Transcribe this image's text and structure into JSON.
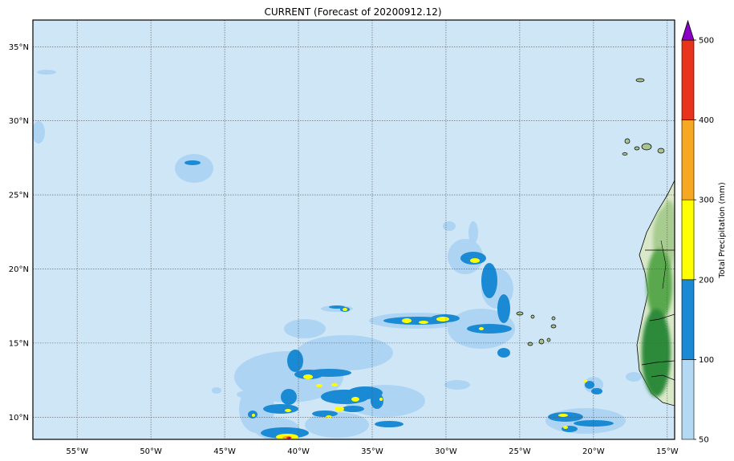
{
  "title": "CURRENT (Forecast of 20200912.12)",
  "map": {
    "lon_range": [
      -58,
      -14.5
    ],
    "lat_range": [
      8.5,
      36.8
    ],
    "ocean_color": "#cfe6f7",
    "grid_lon": [
      -55,
      -50,
      -45,
      -40,
      -35,
      -30,
      -25,
      -20,
      -15
    ],
    "grid_lat": [
      10,
      15,
      20,
      25,
      30,
      35
    ],
    "lon_labels": [
      "55°W",
      "50°W",
      "45°W",
      "40°W",
      "35°W",
      "30°W",
      "25°W",
      "20°W",
      "15°W"
    ],
    "lat_labels": [
      "10°N",
      "15°N",
      "20°N",
      "25°N",
      "30°N",
      "35°N"
    ],
    "land_colors": [
      "#d8e8c8",
      "#a8cc90",
      "#5aa84e",
      "#2e8a3a"
    ]
  },
  "colorbar": {
    "label": "Total Precipitation (mm)",
    "ticks": [
      "50",
      "100",
      "200",
      "300",
      "400",
      "500"
    ],
    "colors": [
      "#b3d9f5",
      "#1a8ad4",
      "#ffff00",
      "#f7a823",
      "#e8341c"
    ],
    "extend_color": "#8a00c8",
    "field_colors": [
      "#aed4f4",
      "#1a8ad4",
      "#ffff00",
      "#f7a823",
      "#e8341c",
      "#c0007a"
    ]
  }
}
